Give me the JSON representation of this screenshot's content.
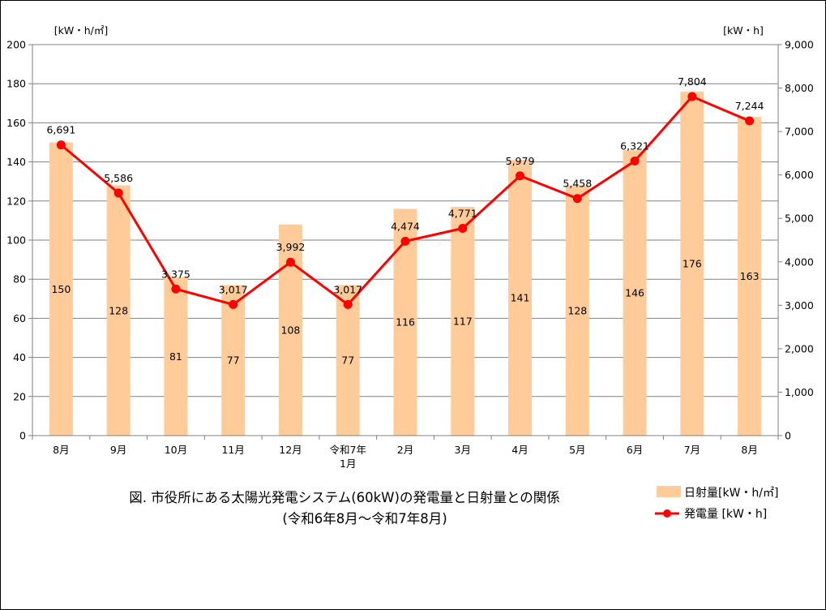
{
  "chart_data": {
    "type": "bar",
    "title": "図. 市役所にある太陽光発電システム(60kW)の発電量と日射量との関係",
    "subtitle": "(令和6年8月～令和7年8月)",
    "categories": [
      "8月",
      "9月",
      "10月",
      "11月",
      "12月",
      "令和7年\n1月",
      "2月",
      "3月",
      "4月",
      "5月",
      "6月",
      "7月",
      "8月"
    ],
    "series": [
      {
        "name": "日射量[kW・h/㎡]",
        "type": "bar",
        "axis": "left",
        "values": [
          150,
          128,
          81,
          77,
          108,
          77,
          116,
          117,
          141,
          128,
          146,
          176,
          163
        ],
        "labels": [
          "150",
          "128",
          "81",
          "77",
          "108",
          "77",
          "116",
          "117",
          "141",
          "128",
          "146",
          "176",
          "163"
        ]
      },
      {
        "name": "発電量 [kW・h]",
        "type": "line",
        "axis": "right",
        "values": [
          6691,
          5586,
          3375,
          3017,
          3992,
          3017,
          4474,
          4771,
          5979,
          5458,
          6321,
          7804,
          7244
        ],
        "labels": [
          "6,691",
          "5,586",
          "3,375",
          "3,017",
          "3,992",
          "3,017",
          "4,474",
          "4,771",
          "5,979",
          "5,458",
          "6,321",
          "7,804",
          "7,244"
        ]
      }
    ],
    "y_left": {
      "unit": "[kW・h/㎡]",
      "ylim": [
        0,
        200
      ],
      "ticks": [
        "0",
        "20",
        "40",
        "60",
        "80",
        "100",
        "120",
        "140",
        "160",
        "180",
        "200"
      ]
    },
    "y_right": {
      "unit": "[kW・h]",
      "ylim": [
        0,
        9000
      ],
      "ticks": [
        "0",
        "1,000",
        "2,000",
        "3,000",
        "4,000",
        "5,000",
        "6,000",
        "7,000",
        "8,000",
        "9,000"
      ]
    },
    "grid": true,
    "legend_position": "bottom-right",
    "colors": {
      "bar": "#FFCC99",
      "line": "#FF0000",
      "grid": "#808080",
      "axis": "#808080"
    }
  }
}
